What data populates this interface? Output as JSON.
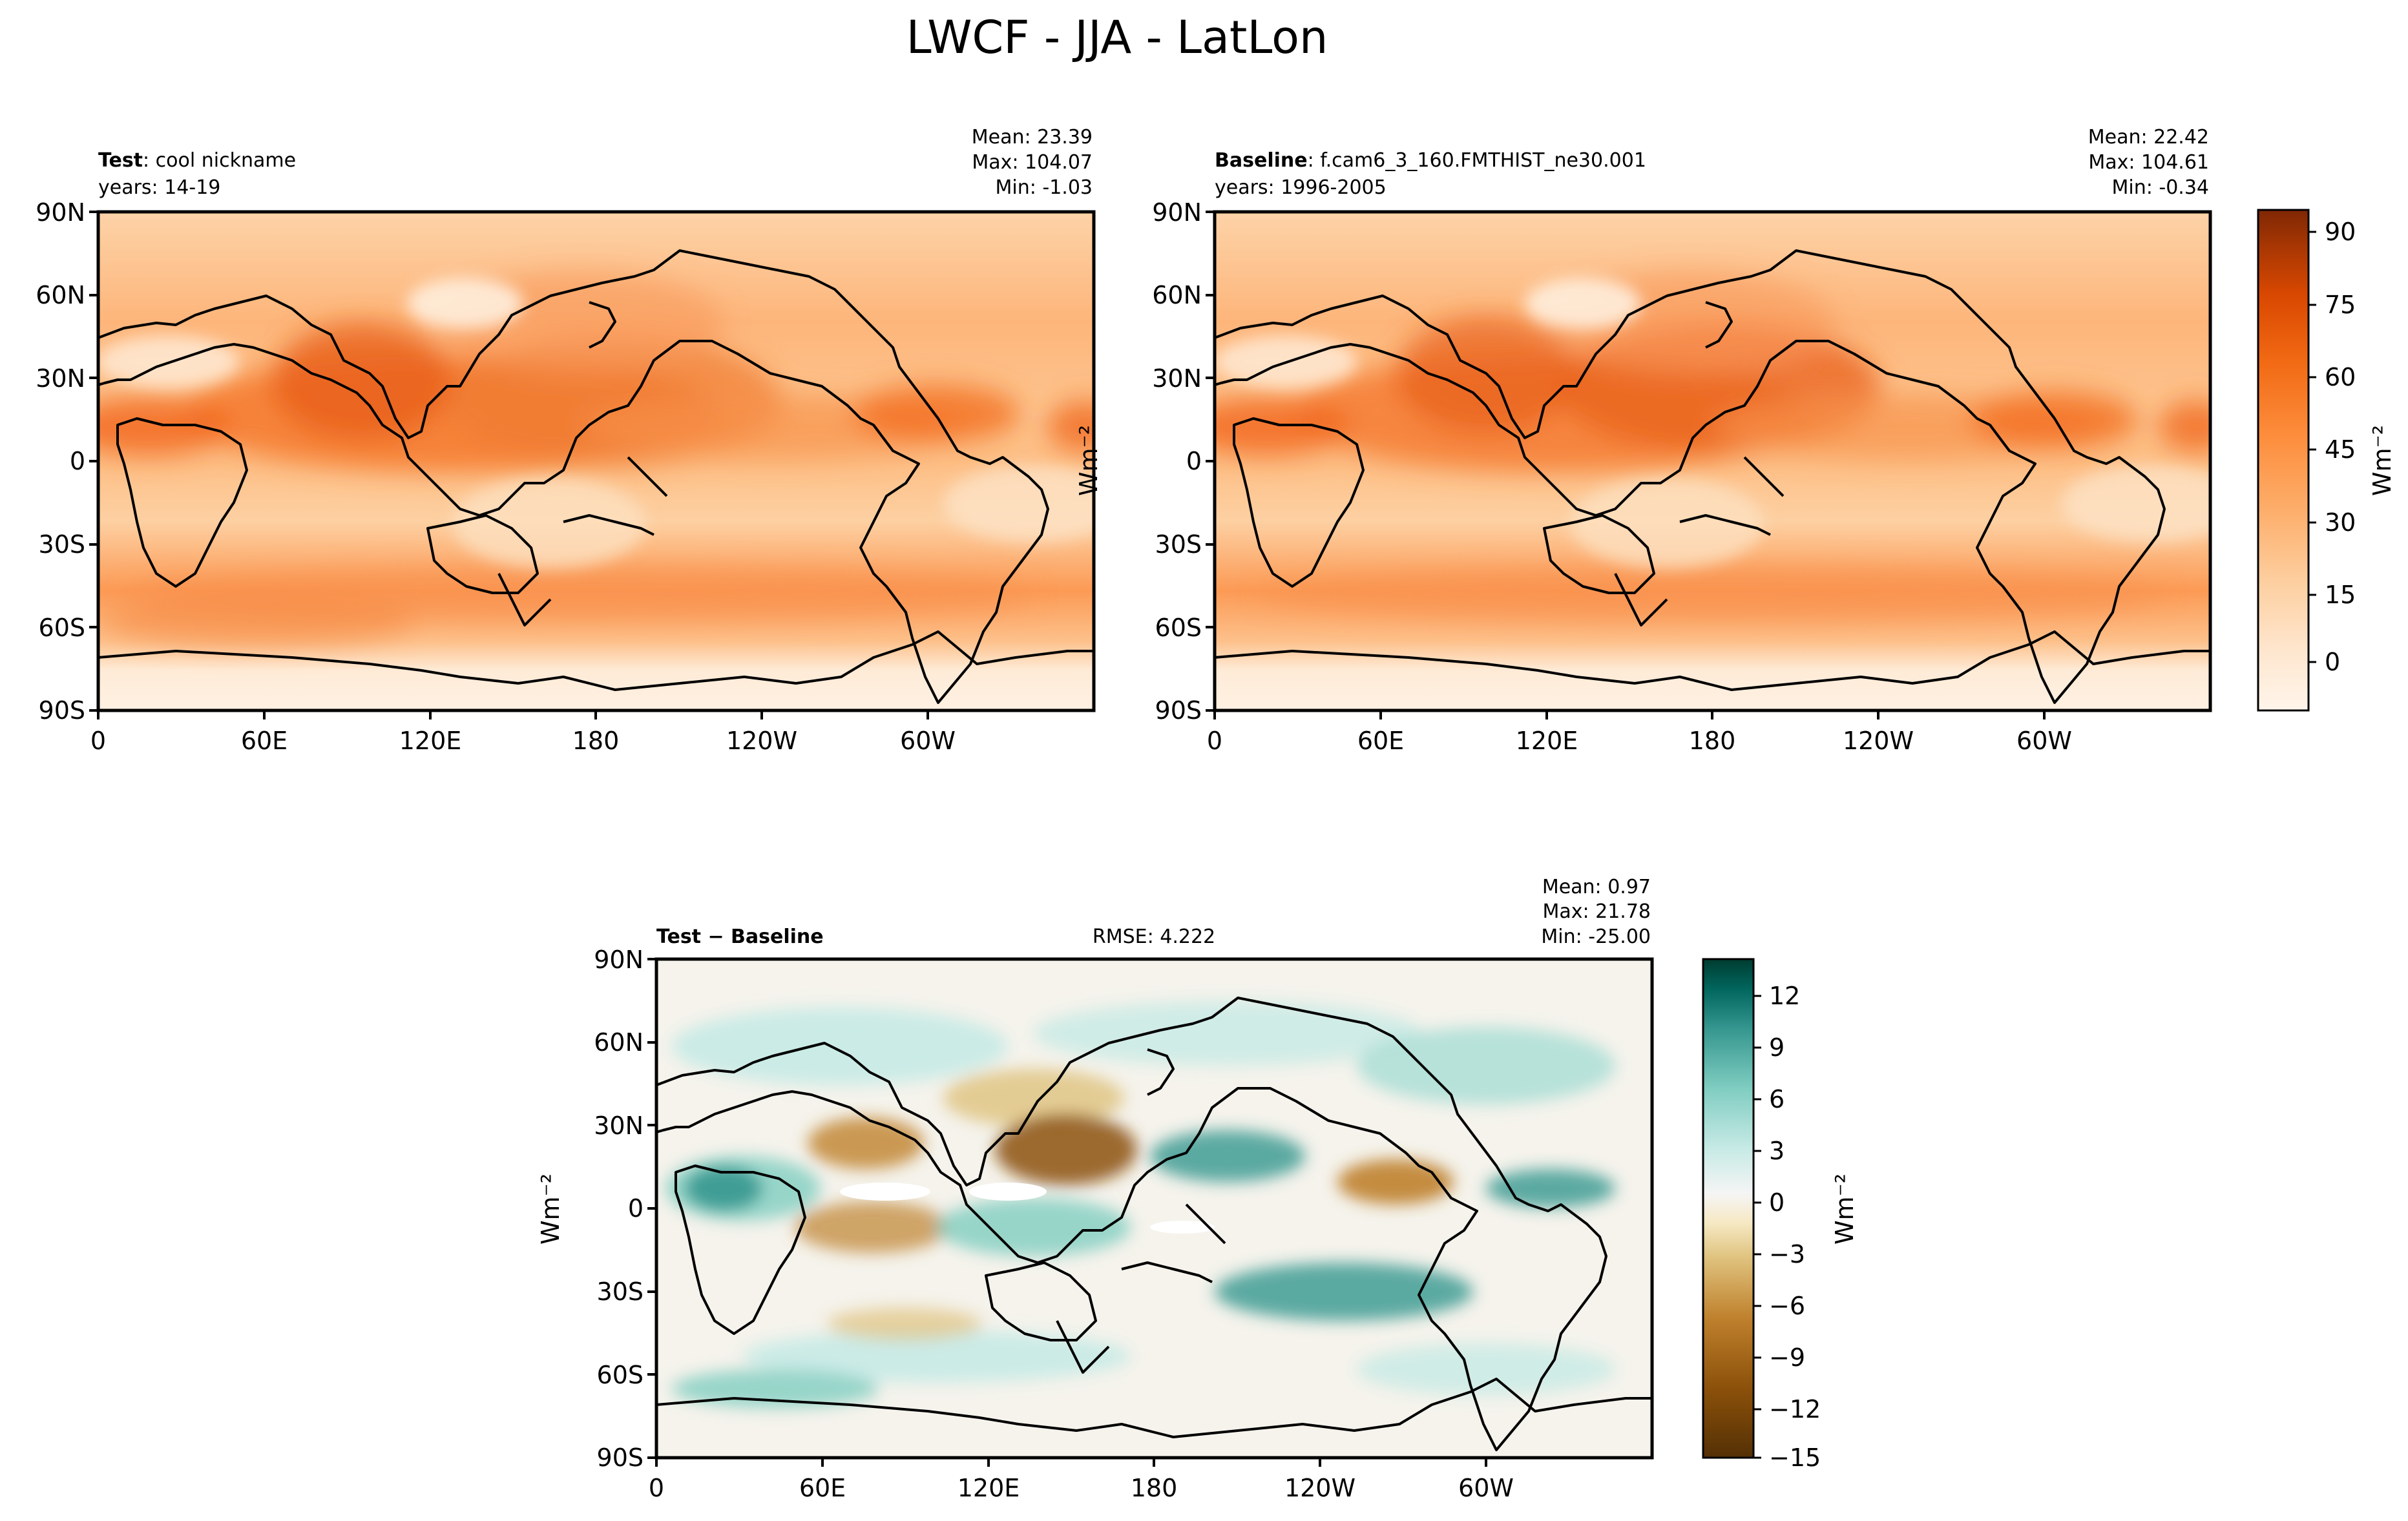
{
  "figure": {
    "title": "LWCF - JJA - LatLon"
  },
  "panels": [
    {
      "id": "test",
      "label_bold": "Test",
      "label_text": ": cool nickname",
      "years": "years: 14-19",
      "mean": "Mean: 23.39",
      "max": "Max: 104.07",
      "min": "Min: -1.03",
      "rmse": ""
    },
    {
      "id": "baseline",
      "label_bold": "Baseline",
      "label_text": ": f.cam6_3_160.FMTHIST_ne30.001",
      "years": "years: 1996-2005",
      "mean": "Mean: 22.42",
      "max": "Max: 104.61",
      "min": "Min: -0.34",
      "rmse": ""
    },
    {
      "id": "diff",
      "label_bold": "Test − Baseline",
      "label_text": "",
      "years": "",
      "mean": "Mean:  0.97",
      "max": "Max: 21.78",
      "min": "Min: -25.00",
      "rmse": "RMSE: 4.222"
    }
  ],
  "axes": {
    "x_ticks": [
      "0",
      "60E",
      "120E",
      "180",
      "120W",
      "60W"
    ],
    "y_ticks": [
      "90N",
      "60N",
      "30N",
      "0",
      "30S",
      "60S",
      "90S"
    ]
  },
  "colorbars": {
    "unit_label": "Wm⁻²",
    "main_ticks": [
      "90",
      "75",
      "60",
      "45",
      "30",
      "15",
      "0"
    ],
    "diff_ticks": [
      "12",
      "9",
      "6",
      "3",
      "0",
      "−3",
      "−6",
      "−9",
      "−12",
      "−15"
    ]
  },
  "chart_data": [
    {
      "type": "heatmap",
      "title": "Test",
      "subtitle": "cool nickname",
      "xlim": [
        0,
        360
      ],
      "ylim": [
        -90,
        90
      ],
      "x_tick_values": [
        0,
        60,
        120,
        180,
        240,
        300
      ],
      "y_tick_values": [
        90,
        60,
        30,
        0,
        -30,
        -60,
        -90
      ],
      "colorbar_range": [
        -9,
        95
      ],
      "colorbar_tick_values": [
        90,
        75,
        60,
        45,
        30,
        15,
        0
      ],
      "colormap": "Oranges",
      "colors": [
        "#fff5eb",
        "#fdd9b4",
        "#fda762",
        "#f3701b",
        "#c54102",
        "#7f2704"
      ],
      "stats": {
        "mean": 23.39,
        "max": 104.07,
        "min": -1.03
      }
    },
    {
      "type": "heatmap",
      "title": "Baseline",
      "subtitle": "f.cam6_3_160.FMTHIST_ne30.001",
      "xlim": [
        0,
        360
      ],
      "ylim": [
        -90,
        90
      ],
      "colorbar_range": [
        -9,
        95
      ],
      "colormap": "Oranges",
      "stats": {
        "mean": 22.42,
        "max": 104.61,
        "min": -0.34
      }
    },
    {
      "type": "heatmap",
      "title": "Test − Baseline",
      "xlim": [
        0,
        360
      ],
      "ylim": [
        -90,
        90
      ],
      "colorbar_range": [
        -15,
        14
      ],
      "colorbar_tick_values": [
        12,
        9,
        6,
        3,
        0,
        -3,
        -6,
        -9,
        -12,
        -15
      ],
      "colormap": "BrBG",
      "colors": [
        "#543005",
        "#bf812d",
        "#f6e8c3",
        "#f5f5f5",
        "#c7eae5",
        "#35978f",
        "#003c30"
      ],
      "stats": {
        "mean": 0.97,
        "max": 21.78,
        "min": -25.0,
        "rmse": 4.222
      }
    }
  ]
}
